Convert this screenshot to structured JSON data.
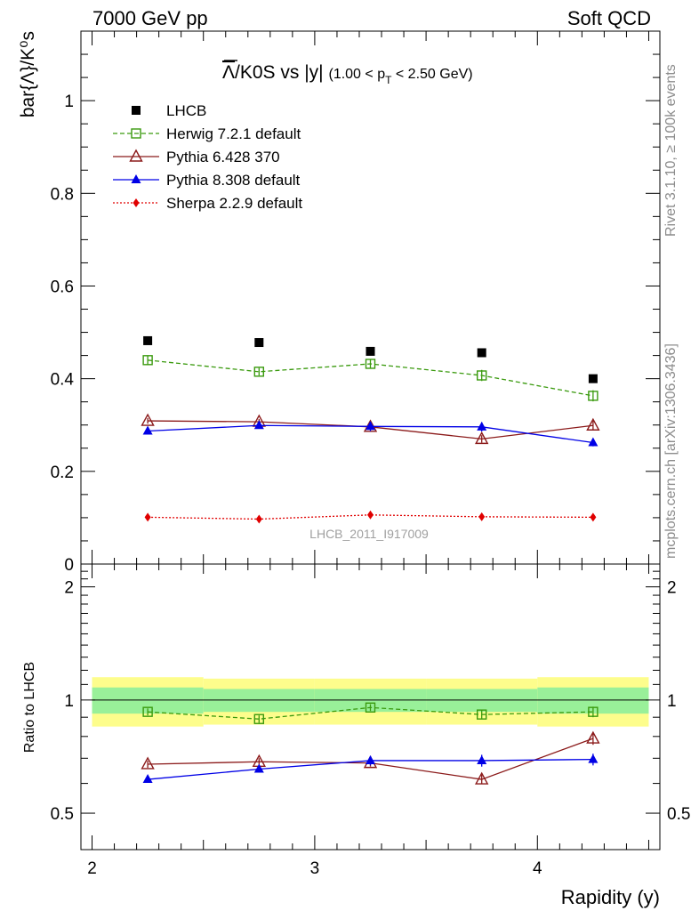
{
  "header": {
    "energy_label": "7000 GeV pp",
    "topic_label": "Soft QCD"
  },
  "side_labels": {
    "rivet": "Rivet 3.1.10, ≥ 100k events",
    "mcplots": "mcplots.cern.ch [arXiv:1306.3436]"
  },
  "chart_data": [
    {
      "panel": "main",
      "type": "scatter",
      "title": "Λ̄/K0S vs |y|",
      "title_parts": {
        "main": "/K0S vs |y|",
        "cut": "(1.00 < p",
        "cut_sub": "T",
        "cut_end": " < 2.50 GeV)"
      },
      "ylabel": "bar{Λ}/K⁰s",
      "ylim": [
        0,
        1.15
      ],
      "yticks": [
        0,
        0.2,
        0.4,
        0.6,
        0.8,
        1
      ],
      "ytick_labels": [
        "0",
        "0.2",
        "0.4",
        "0.6",
        "0.8",
        "1"
      ],
      "xlim": [
        1.95,
        4.55
      ],
      "x": [
        2.25,
        2.75,
        3.25,
        3.75,
        4.25
      ],
      "watermark": "LHCB_2011_I917009",
      "legend_position": "top-left",
      "series": [
        {
          "name": "LHCB",
          "style": "data",
          "color": "#000000",
          "values": [
            0.482,
            0.478,
            0.459,
            0.456,
            0.4
          ]
        },
        {
          "name": "Herwig 7.2.1 default",
          "style": "square-open-dashed",
          "color": "#3a9a0e",
          "values": [
            0.44,
            0.415,
            0.432,
            0.407,
            0.363
          ],
          "errors": [
            0.01,
            0.008,
            0.01,
            0.012,
            0.012
          ]
        },
        {
          "name": "Pythia 6.428 370",
          "style": "triangle-open-solid",
          "color": "#8b1a1a",
          "values": [
            0.309,
            0.307,
            0.296,
            0.27,
            0.299
          ],
          "errors": [
            0.006,
            0.006,
            0.006,
            0.008,
            0.01
          ]
        },
        {
          "name": "Pythia 8.308 default",
          "style": "triangle-filled-solid",
          "color": "#0000e6",
          "values": [
            0.287,
            0.299,
            0.297,
            0.296,
            0.262
          ],
          "errors": [
            0.006,
            0.006,
            0.01,
            0.01,
            0.008
          ]
        },
        {
          "name": "Sherpa 2.2.9 default",
          "style": "diamond-filled-dotted",
          "color": "#e00000",
          "values": [
            0.101,
            0.097,
            0.106,
            0.102,
            0.101
          ],
          "errors": [
            0.002,
            0.002,
            0.002,
            0.002,
            0.002
          ]
        }
      ]
    },
    {
      "panel": "ratio",
      "type": "line",
      "ylabel": "Ratio to LHCB",
      "ylim": [
        0.4,
        2.3
      ],
      "scale": "log",
      "yticks": [
        0.5,
        1,
        2
      ],
      "ytick_labels": [
        "0.5",
        "1",
        "2"
      ],
      "xlim": [
        1.95,
        4.55
      ],
      "xlabel": "Rapidity (y)",
      "xticks": [
        2,
        3,
        4
      ],
      "xtick_labels": [
        "2",
        "3",
        "4"
      ],
      "x": [
        2.25,
        2.75,
        3.25,
        3.75,
        4.25
      ],
      "bands": {
        "x_edges": [
          2.0,
          2.5,
          3.0,
          3.5,
          4.0,
          4.5
        ],
        "inner_halfwidth": [
          0.08,
          0.07,
          0.07,
          0.07,
          0.08
        ],
        "outer_halfwidth": [
          0.15,
          0.14,
          0.14,
          0.14,
          0.15
        ],
        "inner_color": "#99f099",
        "outer_color": "#fdfd8c"
      },
      "series": [
        {
          "name": "Herwig 7.2.1 default",
          "style": "square-open-dashed",
          "color": "#3a9a0e",
          "values": [
            0.93,
            0.89,
            0.955,
            0.915,
            0.93
          ],
          "errors": [
            0.02,
            0.02,
            0.02,
            0.025,
            0.03
          ]
        },
        {
          "name": "Pythia 6.428 370",
          "style": "triangle-open-solid",
          "color": "#8b1a1a",
          "values": [
            0.675,
            0.685,
            0.68,
            0.615,
            0.79
          ],
          "errors": [
            0.015,
            0.015,
            0.015,
            0.018,
            0.03
          ]
        },
        {
          "name": "Pythia 8.308 default",
          "style": "triangle-filled-solid",
          "color": "#0000e6",
          "values": [
            0.615,
            0.655,
            0.69,
            0.69,
            0.695
          ],
          "errors": [
            0.012,
            0.012,
            0.02,
            0.025,
            0.025
          ]
        }
      ]
    }
  ]
}
